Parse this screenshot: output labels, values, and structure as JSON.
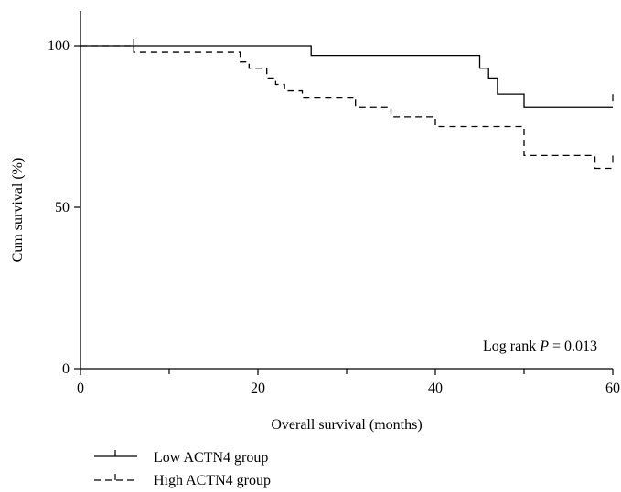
{
  "chart_data": {
    "type": "line",
    "xlabel": "Overall survival (months)",
    "ylabel": "Cum survival (%)",
    "xlim": [
      0,
      60
    ],
    "ylim": [
      0,
      100
    ],
    "xticks": [
      0,
      20,
      40,
      60
    ],
    "yticks": [
      0,
      50,
      100
    ],
    "x_minor_ticks": [
      10,
      30,
      50
    ],
    "grid": false,
    "legend_position": "bottom-left",
    "annotation": {
      "prefix": "Log rank ",
      "p_symbol": "P",
      "suffix": " = 0.013"
    },
    "series": [
      {
        "name": "Low ACTN4 group",
        "style": "solid",
        "steps": [
          [
            0,
            100
          ],
          [
            26,
            97
          ],
          [
            45,
            93
          ],
          [
            46,
            90
          ],
          [
            47,
            85
          ],
          [
            50,
            81
          ],
          [
            60,
            81
          ]
        ],
        "censored": [
          [
            6,
            100
          ],
          [
            60,
            83
          ]
        ]
      },
      {
        "name": "High ACTN4 group",
        "style": "dashed",
        "steps": [
          [
            0,
            100
          ],
          [
            6,
            98
          ],
          [
            18,
            95
          ],
          [
            19,
            93
          ],
          [
            21,
            90
          ],
          [
            22,
            88
          ],
          [
            23,
            86
          ],
          [
            25,
            84
          ],
          [
            31,
            81
          ],
          [
            35,
            78
          ],
          [
            40,
            75
          ],
          [
            50,
            66
          ],
          [
            58,
            62
          ],
          [
            60,
            62
          ]
        ],
        "censored": [
          [
            60,
            64
          ]
        ]
      }
    ]
  }
}
